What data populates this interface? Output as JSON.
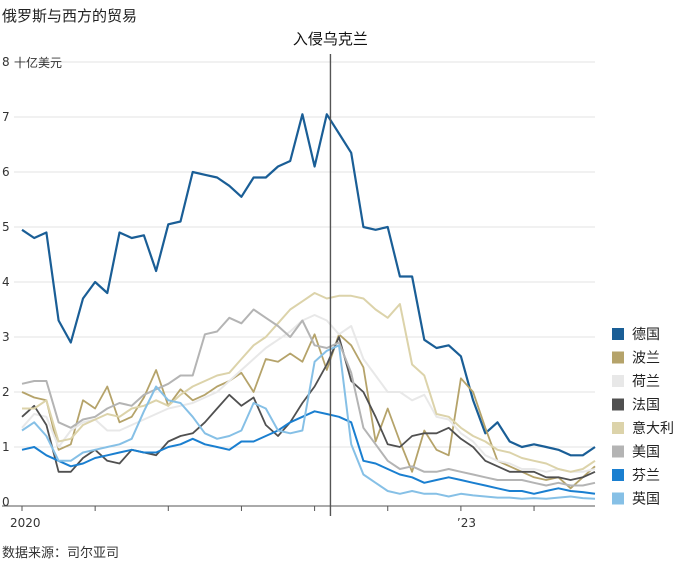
{
  "chart_data": {
    "type": "line",
    "title": "俄罗斯与西方的贸易",
    "unit_label": "十亿美元",
    "source": "数据来源：司尔亚司",
    "annotation": {
      "label": "入侵乌克兰",
      "x": 25.3
    },
    "y_ticks": [
      0,
      1,
      2,
      3,
      4,
      5,
      6,
      7,
      8
    ],
    "x_tick_labels": [
      {
        "label": "2020",
        "x": 0
      },
      {
        "label": "’23",
        "x": 36
      }
    ],
    "xlim": [
      0,
      47
    ],
    "ylim": [
      0,
      8
    ],
    "grid": true,
    "legend_position": "right",
    "series": [
      {
        "name": "德国",
        "color": "#1a5e96",
        "width": 2.2,
        "values": [
          4.95,
          4.8,
          4.9,
          3.3,
          2.9,
          3.7,
          4.0,
          3.8,
          4.9,
          4.8,
          4.85,
          4.2,
          5.05,
          5.1,
          6.0,
          5.95,
          5.9,
          5.75,
          5.55,
          5.9,
          5.9,
          6.1,
          6.2,
          7.05,
          6.1,
          7.05,
          6.7,
          6.35,
          5.0,
          4.95,
          5.0,
          4.1,
          4.1,
          2.95,
          2.8,
          2.85,
          2.65,
          1.85,
          1.25,
          1.45,
          1.1,
          1.0,
          1.05,
          1.0,
          0.95,
          0.85,
          0.85,
          1.0
        ]
      },
      {
        "name": "波兰",
        "color": "#b5a36a",
        "width": 1.8,
        "values": [
          2.0,
          1.9,
          1.85,
          0.95,
          1.05,
          1.85,
          1.7,
          2.1,
          1.45,
          1.55,
          1.9,
          2.4,
          1.75,
          2.05,
          1.85,
          1.95,
          2.1,
          2.2,
          2.35,
          2.0,
          2.6,
          2.55,
          2.7,
          2.55,
          3.05,
          2.4,
          3.05,
          2.85,
          2.45,
          1.1,
          1.7,
          1.1,
          0.55,
          1.3,
          0.95,
          0.85,
          2.25,
          2.0,
          1.35,
          0.75,
          0.65,
          0.55,
          0.45,
          0.4,
          0.45,
          0.25,
          0.45,
          0.65
        ]
      },
      {
        "name": "荷兰",
        "color": "#e8e8e8",
        "width": 2.0,
        "values": [
          1.35,
          1.6,
          1.55,
          1.0,
          1.3,
          1.45,
          1.5,
          1.3,
          1.3,
          1.4,
          1.5,
          1.6,
          1.7,
          1.75,
          1.8,
          1.9,
          2.0,
          2.2,
          2.4,
          2.6,
          2.8,
          2.95,
          3.1,
          3.3,
          3.4,
          3.3,
          3.05,
          3.2,
          2.6,
          2.3,
          2.0,
          2.0,
          1.85,
          1.95,
          1.55,
          1.5,
          1.25,
          1.1,
          0.85,
          0.75,
          0.7,
          0.6,
          0.6,
          0.55,
          0.6,
          0.55,
          0.55,
          0.6
        ]
      },
      {
        "name": "法国",
        "color": "#505050",
        "width": 1.8,
        "values": [
          1.55,
          1.75,
          1.4,
          0.55,
          0.55,
          0.8,
          0.95,
          0.75,
          0.7,
          0.95,
          0.9,
          0.85,
          1.1,
          1.2,
          1.25,
          1.45,
          1.7,
          1.95,
          1.75,
          1.9,
          1.4,
          1.2,
          1.45,
          1.8,
          2.1,
          2.5,
          3.0,
          2.2,
          2.0,
          1.55,
          1.05,
          1.0,
          1.2,
          1.25,
          1.25,
          1.35,
          1.15,
          1.0,
          0.75,
          0.65,
          0.55,
          0.55,
          0.55,
          0.45,
          0.45,
          0.4,
          0.45,
          0.55
        ]
      },
      {
        "name": "意大利",
        "color": "#dcd3aa",
        "width": 2.0,
        "values": [
          1.7,
          1.7,
          1.85,
          1.1,
          1.15,
          1.4,
          1.5,
          1.6,
          1.55,
          1.7,
          1.75,
          1.85,
          1.75,
          1.95,
          2.1,
          2.2,
          2.3,
          2.35,
          2.6,
          2.85,
          3.0,
          3.25,
          3.5,
          3.65,
          3.8,
          3.7,
          3.75,
          3.75,
          3.7,
          3.5,
          3.35,
          3.6,
          2.5,
          2.3,
          1.6,
          1.55,
          1.35,
          1.2,
          1.1,
          0.95,
          0.9,
          0.8,
          0.75,
          0.7,
          0.6,
          0.55,
          0.6,
          0.75
        ]
      },
      {
        "name": "美国",
        "color": "#b4b4b4",
        "width": 2.0,
        "values": [
          2.15,
          2.2,
          2.2,
          1.45,
          1.35,
          1.5,
          1.55,
          1.7,
          1.8,
          1.75,
          1.95,
          2.05,
          2.15,
          2.3,
          2.3,
          3.05,
          3.1,
          3.35,
          3.25,
          3.5,
          3.35,
          3.2,
          3.0,
          3.3,
          2.85,
          2.8,
          2.9,
          2.35,
          1.35,
          1.05,
          0.75,
          0.6,
          0.65,
          0.55,
          0.55,
          0.6,
          0.55,
          0.5,
          0.45,
          0.4,
          0.4,
          0.4,
          0.35,
          0.3,
          0.35,
          0.3,
          0.3,
          0.35
        ]
      },
      {
        "name": "芬兰",
        "color": "#1a7fd0",
        "width": 2.0,
        "values": [
          0.95,
          1.0,
          0.85,
          0.75,
          0.65,
          0.7,
          0.8,
          0.85,
          0.9,
          0.95,
          0.9,
          0.9,
          1.0,
          1.05,
          1.15,
          1.05,
          1.0,
          0.95,
          1.1,
          1.1,
          1.2,
          1.3,
          1.45,
          1.55,
          1.65,
          1.6,
          1.55,
          1.45,
          0.75,
          0.7,
          0.6,
          0.5,
          0.45,
          0.35,
          0.4,
          0.45,
          0.4,
          0.35,
          0.3,
          0.25,
          0.2,
          0.2,
          0.15,
          0.2,
          0.25,
          0.2,
          0.18,
          0.15
        ]
      },
      {
        "name": "英国",
        "color": "#86c0e6",
        "width": 2.0,
        "values": [
          1.3,
          1.45,
          1.2,
          0.75,
          0.75,
          0.9,
          0.95,
          1.0,
          1.05,
          1.15,
          1.65,
          2.1,
          1.85,
          1.8,
          1.55,
          1.25,
          1.15,
          1.2,
          1.3,
          1.8,
          1.7,
          1.3,
          1.25,
          1.3,
          2.55,
          2.75,
          2.85,
          1.05,
          0.5,
          0.35,
          0.2,
          0.15,
          0.2,
          0.15,
          0.15,
          0.1,
          0.15,
          0.12,
          0.1,
          0.08,
          0.08,
          0.06,
          0.07,
          0.06,
          0.08,
          0.1,
          0.07,
          0.06
        ]
      }
    ]
  }
}
